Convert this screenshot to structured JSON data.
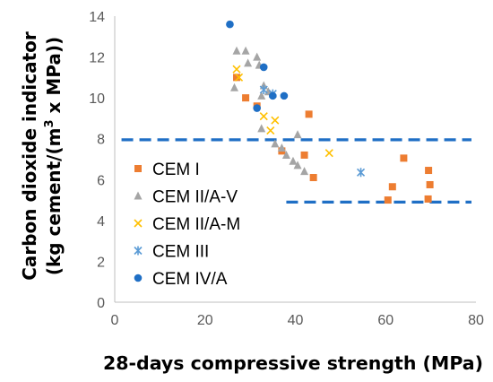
{
  "chart_data": {
    "type": "scatter",
    "xlabel": "28-days compressive strength (MPa)",
    "ylabel": {
      "line1": "Carbon dioxide indicator",
      "line2_prefix": "(kg cement/(m",
      "line2_sup": "3",
      "line2_suffix": " x MPa))"
    },
    "xlim": [
      0,
      80
    ],
    "ylim": [
      0,
      14
    ],
    "xticks": [
      0,
      20,
      40,
      60,
      80
    ],
    "yticks": [
      0,
      2,
      4,
      6,
      8,
      10,
      12,
      14
    ],
    "grid": false,
    "legend_position": "center-left",
    "series": [
      {
        "name": "CEM I",
        "marker": "square",
        "color": "#ED7D31",
        "points": [
          [
            27,
            11.0
          ],
          [
            29,
            10.0
          ],
          [
            31.5,
            9.6
          ],
          [
            37,
            7.4
          ],
          [
            42,
            7.2
          ],
          [
            43,
            9.2
          ],
          [
            44,
            6.1
          ],
          [
            60.5,
            5.0
          ],
          [
            61.5,
            5.65
          ],
          [
            64,
            7.05
          ],
          [
            69.5,
            6.45
          ],
          [
            69.8,
            5.75
          ],
          [
            69.4,
            5.05
          ]
        ]
      },
      {
        "name": "CEM II/A-V",
        "marker": "triangle",
        "color": "#A5A5A5",
        "points": [
          [
            26.5,
            10.5
          ],
          [
            27,
            12.3
          ],
          [
            29,
            12.3
          ],
          [
            29.5,
            11.7
          ],
          [
            31.5,
            12.0
          ],
          [
            32,
            11.6
          ],
          [
            32.5,
            10.1
          ],
          [
            33,
            10.6
          ],
          [
            32.5,
            8.5
          ],
          [
            34,
            10.3
          ],
          [
            35.5,
            7.75
          ],
          [
            37,
            7.55
          ],
          [
            38,
            7.2
          ],
          [
            39.5,
            6.9
          ],
          [
            40.5,
            8.2
          ],
          [
            40.5,
            6.7
          ],
          [
            42,
            6.4
          ]
        ]
      },
      {
        "name": "CEM II/A-M",
        "marker": "x",
        "color": "#FFC000",
        "points": [
          [
            27,
            11.4
          ],
          [
            27.5,
            11.0
          ],
          [
            33,
            9.1
          ],
          [
            34.5,
            8.4
          ],
          [
            35.5,
            8.9
          ],
          [
            47.5,
            7.3
          ]
        ]
      },
      {
        "name": "CEM III",
        "marker": "asterisk",
        "color": "#5B9BD5",
        "points": [
          [
            33,
            10.4
          ],
          [
            35,
            10.2
          ],
          [
            54.5,
            6.35
          ]
        ]
      },
      {
        "name": "CEM IV/A",
        "marker": "circle",
        "color": "#1F6FC5",
        "points": [
          [
            25.5,
            13.6
          ],
          [
            33,
            11.5
          ],
          [
            31.5,
            9.5
          ],
          [
            35,
            10.1
          ],
          [
            37.5,
            10.1
          ]
        ]
      }
    ],
    "reference_lines": [
      {
        "y": 7.95,
        "x_range": [
          1.5,
          79
        ],
        "style": "dashed",
        "color": "#1F6FC5"
      },
      {
        "y": 4.9,
        "x_range": [
          38,
          79
        ],
        "style": "dashed",
        "color": "#1F6FC5"
      }
    ]
  }
}
